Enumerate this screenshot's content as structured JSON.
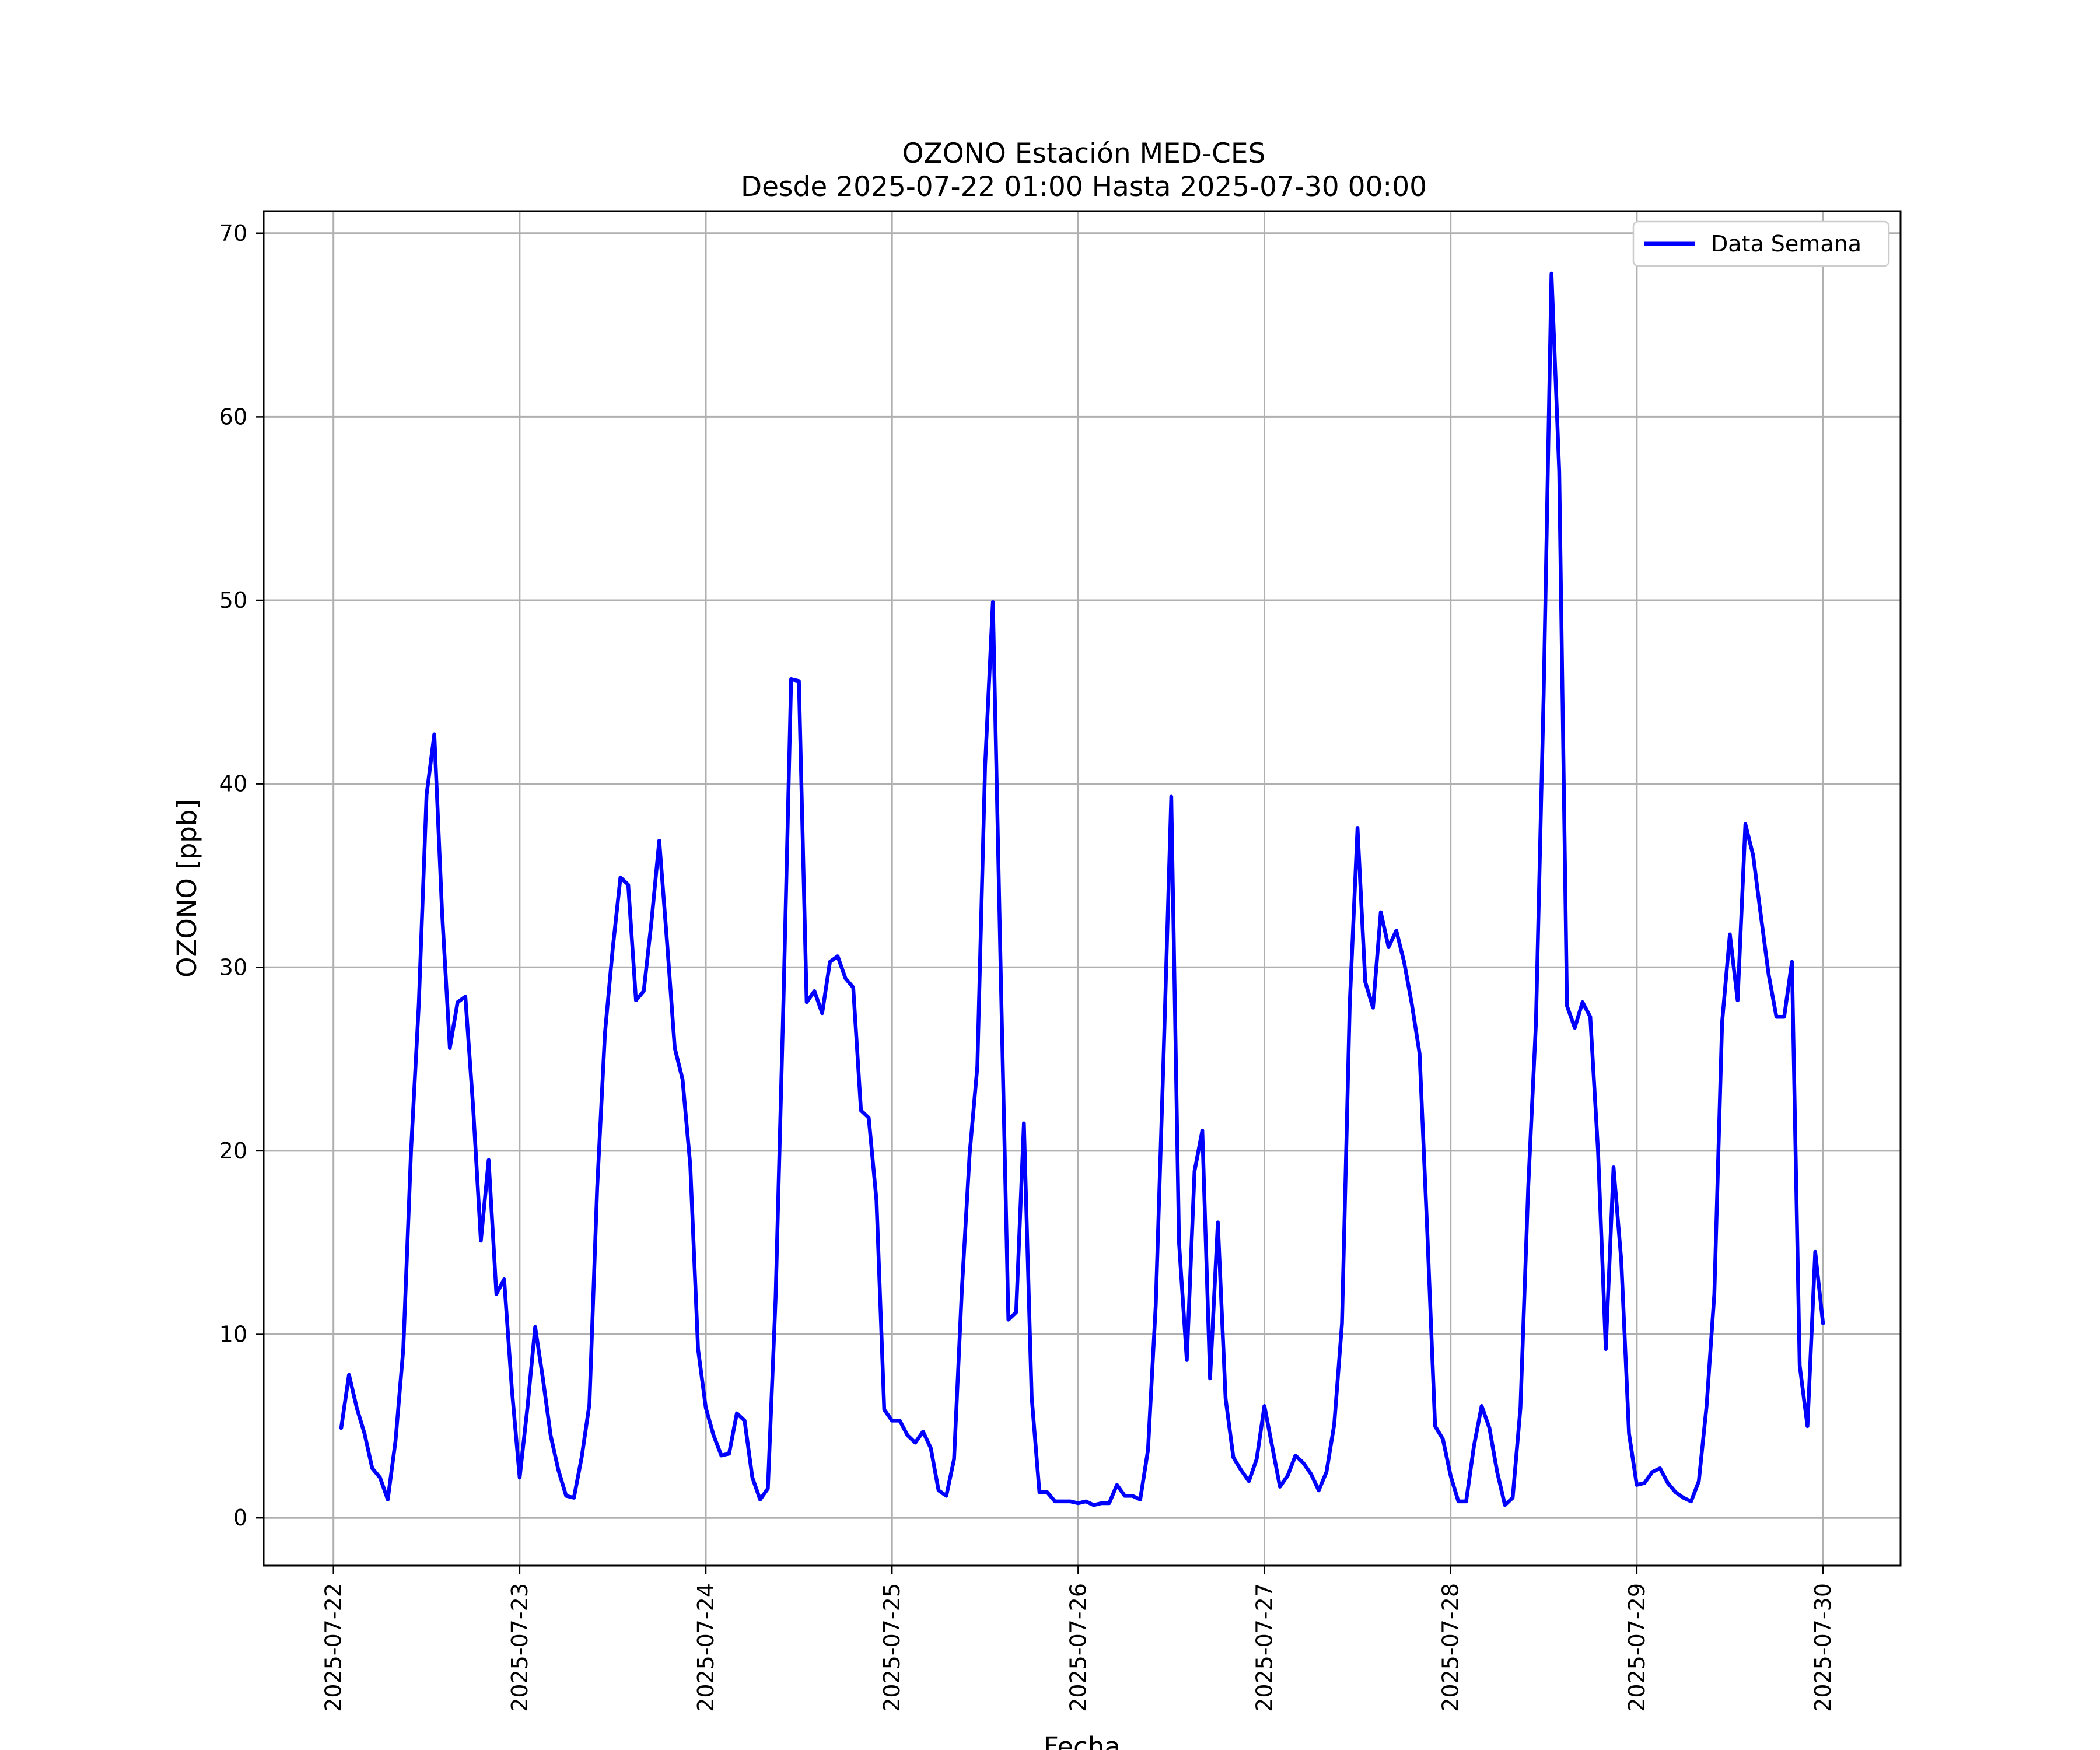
{
  "chart_data": {
    "type": "line",
    "title": "OZONO Estación MED-CES",
    "subtitle": "Desde 2025-07-22 01:00 Hasta 2025-07-30 00:00",
    "xlabel": "Fecha",
    "ylabel": "OZONO [ppb]",
    "ylim": [
      -2.6,
      71.2
    ],
    "xlim": [
      "2025-07-21 15:00",
      "2025-07-30 10:00"
    ],
    "grid": true,
    "legend_position": "top-right",
    "x_ticks": [
      "2025-07-22",
      "2025-07-23",
      "2025-07-24",
      "2025-07-25",
      "2025-07-26",
      "2025-07-27",
      "2025-07-28",
      "2025-07-29",
      "2025-07-30"
    ],
    "y_ticks": [
      0,
      10,
      20,
      30,
      40,
      50,
      60,
      70
    ],
    "x_start": "2025-07-22 01:00",
    "x_step_hours": 1,
    "series": [
      {
        "name": "Data Semana",
        "color": "#0000ff",
        "values": [
          4.9,
          7.8,
          6.0,
          4.6,
          2.7,
          2.2,
          1.0,
          4.2,
          9.2,
          20.0,
          28.0,
          39.4,
          42.7,
          33.0,
          25.6,
          28.1,
          28.4,
          22.4,
          15.1,
          19.5,
          12.2,
          13.0,
          7.0,
          2.2,
          6.0,
          10.4,
          7.6,
          4.5,
          2.6,
          1.2,
          1.1,
          3.3,
          6.2,
          18.0,
          26.4,
          31.0,
          34.9,
          34.5,
          28.2,
          28.7,
          32.5,
          36.9,
          31.4,
          25.6,
          23.9,
          19.2,
          9.2,
          6.0,
          4.5,
          3.4,
          3.5,
          5.7,
          5.3,
          2.2,
          1.0,
          1.6,
          12.0,
          28.0,
          45.7,
          45.6,
          28.1,
          28.7,
          27.5,
          30.3,
          30.6,
          29.4,
          28.9,
          22.2,
          21.8,
          17.3,
          5.9,
          5.3,
          5.3,
          4.5,
          4.1,
          4.7,
          3.8,
          1.5,
          1.2,
          3.2,
          12.4,
          19.8,
          24.6,
          41.0,
          49.9,
          30.0,
          10.8,
          11.2,
          21.5,
          6.6,
          1.4,
          1.4,
          0.9,
          0.9,
          0.9,
          0.8,
          0.9,
          0.7,
          0.8,
          0.8,
          1.8,
          1.2,
          1.2,
          1.0,
          3.7,
          11.6,
          25.0,
          39.3,
          15.0,
          8.6,
          18.9,
          21.1,
          7.6,
          16.1,
          6.5,
          3.3,
          2.6,
          2.0,
          3.2,
          6.1,
          3.9,
          1.7,
          2.3,
          3.4,
          3.0,
          2.4,
          1.5,
          2.5,
          5.1,
          10.6,
          28.0,
          37.6,
          29.2,
          27.8,
          33.0,
          31.1,
          32.0,
          30.3,
          28.0,
          25.3,
          15.5,
          5.0,
          4.3,
          2.3,
          0.9,
          0.9,
          3.9,
          6.1,
          4.9,
          2.5,
          0.7,
          1.1,
          6.0,
          18.0,
          27.0,
          45.0,
          67.8,
          57.0,
          27.9,
          26.7,
          28.1,
          27.3,
          20.0,
          9.2,
          19.1,
          14.0,
          4.6,
          1.8,
          1.9,
          2.5,
          2.7,
          1.9,
          1.4,
          1.1,
          0.9,
          2.0,
          6.1,
          12.2,
          27.0,
          31.8,
          28.2,
          37.8,
          36.1,
          32.8,
          29.6,
          27.3,
          27.3,
          30.3,
          8.3,
          5.0,
          14.5,
          10.6
        ]
      }
    ]
  }
}
